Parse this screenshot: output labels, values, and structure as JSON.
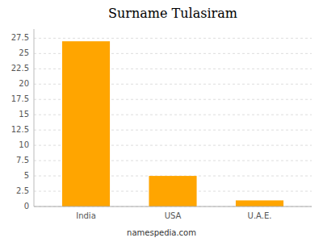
{
  "chart_data": {
    "type": "bar",
    "title": "Surname Tulasiram",
    "categories": [
      "India",
      "USA",
      "U.A.E."
    ],
    "values": [
      27,
      5,
      1
    ],
    "color": "#FFA500",
    "ylim": [
      0,
      29
    ],
    "yticks": [
      0,
      2.5,
      5,
      7.5,
      10,
      12.5,
      15,
      17.5,
      20,
      22.5,
      25,
      27.5
    ],
    "grid": true,
    "annotations": [
      "namespedia.com"
    ]
  }
}
